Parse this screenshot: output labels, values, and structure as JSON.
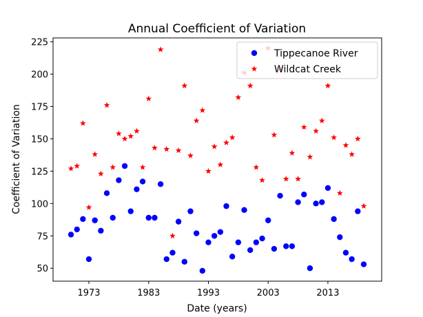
{
  "chart_data": {
    "type": "scatter",
    "title": "Annual Coefficient of Variation",
    "xlabel": "Date (years)",
    "ylabel": "Coefficient of Variation",
    "xlim": [
      1967,
      2022
    ],
    "ylim": [
      40,
      228
    ],
    "xticks": [
      1973,
      1983,
      1993,
      2003,
      2013
    ],
    "yticks": [
      50,
      75,
      100,
      125,
      150,
      175,
      200,
      225
    ],
    "grid": false,
    "legend": "top-right",
    "series": [
      {
        "name": "Tippecanoe River",
        "marker": "circle",
        "color": "#0000ff",
        "x": [
          1970,
          1971,
          1972,
          1973,
          1974,
          1975,
          1976,
          1977,
          1978,
          1979,
          1980,
          1981,
          1982,
          1983,
          1984,
          1985,
          1986,
          1987,
          1988,
          1989,
          1990,
          1991,
          1992,
          1993,
          1994,
          1995,
          1996,
          1997,
          1998,
          1999,
          2000,
          2001,
          2002,
          2003,
          2004,
          2005,
          2006,
          2007,
          2008,
          2009,
          2010,
          2011,
          2012,
          2013,
          2014,
          2015,
          2016,
          2017,
          2018,
          2019
        ],
        "y": [
          76,
          80,
          88,
          57,
          87,
          79,
          108,
          89,
          118,
          129,
          94,
          111,
          117,
          89,
          89,
          115,
          57,
          62,
          86,
          55,
          94,
          77,
          48,
          70,
          75,
          78,
          98,
          59,
          70,
          95,
          64,
          70,
          73,
          87,
          65,
          106,
          67,
          67,
          101,
          107,
          50,
          100,
          101,
          112,
          88,
          74,
          62,
          57,
          94,
          53
        ]
      },
      {
        "name": "Wildcat Creek",
        "marker": "star",
        "color": "#ff0000",
        "x": [
          1970,
          1971,
          1972,
          1973,
          1974,
          1975,
          1976,
          1977,
          1978,
          1979,
          1980,
          1981,
          1982,
          1983,
          1984,
          1985,
          1986,
          1987,
          1988,
          1989,
          1990,
          1991,
          1992,
          1993,
          1994,
          1995,
          1996,
          1997,
          1998,
          1999,
          2000,
          2001,
          2002,
          2003,
          2004,
          2005,
          2006,
          2007,
          2008,
          2009,
          2010,
          2011,
          2012,
          2013,
          2014,
          2015,
          2016,
          2017,
          2018,
          2019
        ],
        "y": [
          127,
          129,
          162,
          97,
          138,
          123,
          176,
          128,
          154,
          150,
          152,
          156,
          128,
          181,
          143,
          219,
          142,
          75,
          141,
          191,
          137,
          164,
          172,
          125,
          144,
          130,
          147,
          151,
          182,
          201,
          191,
          128,
          118,
          220,
          153,
          204,
          119,
          139,
          119,
          159,
          136,
          156,
          164,
          191,
          151,
          108,
          145,
          138,
          150,
          98
        ]
      }
    ]
  }
}
